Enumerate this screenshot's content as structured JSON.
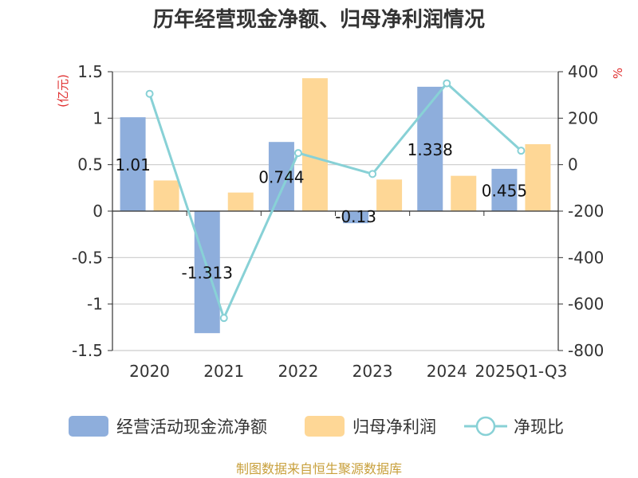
{
  "chart_data": {
    "type": "bar",
    "title": "历年经营现金净额、归母净利润情况",
    "categories": [
      "2020",
      "2021",
      "2022",
      "2023",
      "2024",
      "2025Q1-Q3"
    ],
    "series": [
      {
        "name": "经营活动现金流净额",
        "kind": "bar",
        "axis": "left",
        "color": "#8eaedc",
        "values": [
          1.01,
          -1.313,
          0.744,
          -0.13,
          1.338,
          0.455
        ],
        "labels": [
          "1.01",
          "-1.313",
          "0.744",
          "-0.13",
          "1.338",
          "0.455"
        ]
      },
      {
        "name": "归母净利润",
        "kind": "bar",
        "axis": "left",
        "color": "#fed796",
        "values": [
          0.33,
          0.2,
          1.43,
          0.34,
          0.38,
          0.72
        ]
      },
      {
        "name": "净现比",
        "kind": "line",
        "axis": "right",
        "color": "#88d1d6",
        "values": [
          305,
          -660,
          50,
          -40,
          350,
          60
        ]
      }
    ],
    "y_left": {
      "unit": "(亿元)",
      "min": -1.5,
      "max": 1.5,
      "ticks": [
        1.5,
        1,
        0.5,
        0,
        -0.5,
        -1,
        -1.5
      ],
      "tick_labels": [
        "1.5",
        "1",
        "0.5",
        "0",
        "-0.5",
        "-1",
        "-1.5"
      ]
    },
    "y_right": {
      "unit": "%",
      "min": -800,
      "max": 400,
      "ticks": [
        400,
        200,
        0,
        -200,
        -400,
        -600,
        -800
      ],
      "tick_labels": [
        "400",
        "200",
        "0",
        "-200",
        "-400",
        "-600",
        "-800"
      ]
    },
    "grid": true,
    "legend_position": "bottom"
  },
  "source": "制图数据来自恒生聚源数据库"
}
